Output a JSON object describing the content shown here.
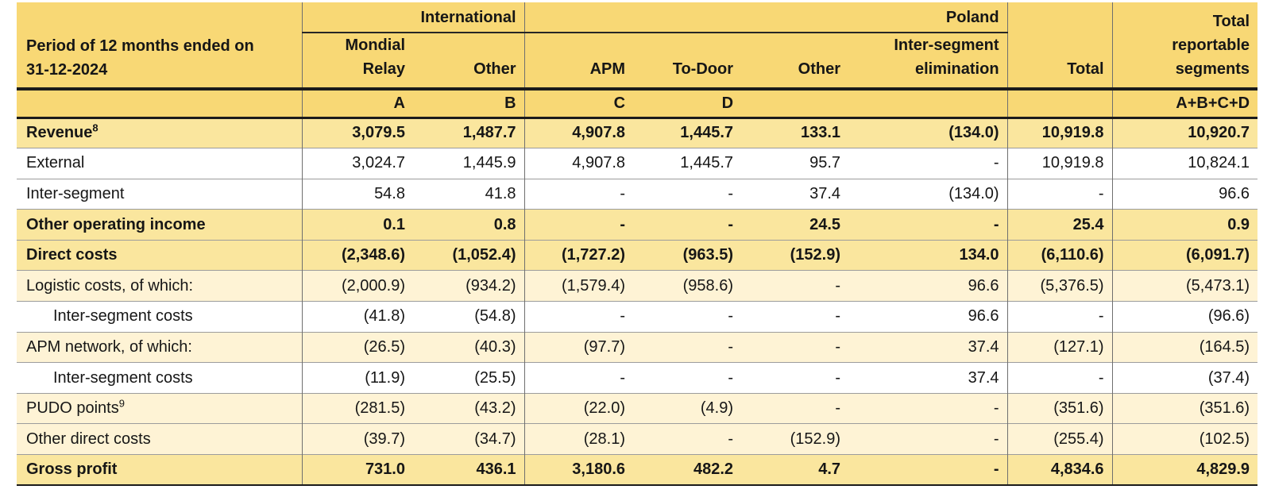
{
  "table": {
    "period_label": "Period of 12 months ended on\n31-12-2024",
    "groups": [
      {
        "label": "International"
      },
      {
        "label": "Poland"
      }
    ],
    "columns": [
      "Mondial\nRelay",
      "Other",
      "APM",
      "To-Door",
      "Other",
      "Inter-segment\nelimination",
      "Total",
      "Total\nreportable\nsegments"
    ],
    "letters": [
      "A",
      "B",
      "C",
      "D",
      "",
      "",
      "",
      "A+B+C+D"
    ],
    "rows": [
      {
        "label": "Revenue",
        "sup": "8",
        "indent": false,
        "style": "highlight",
        "values": [
          "3,079.5",
          "1,487.7",
          "4,907.8",
          "1,445.7",
          "133.1",
          "(134.0)",
          "10,919.8",
          "10,920.7"
        ]
      },
      {
        "label": "External",
        "sup": "",
        "indent": false,
        "style": "white",
        "values": [
          "3,024.7",
          "1,445.9",
          "4,907.8",
          "1,445.7",
          "95.7",
          "-",
          "10,919.8",
          "10,824.1"
        ]
      },
      {
        "label": "Inter-segment",
        "sup": "",
        "indent": false,
        "style": "white",
        "values": [
          "54.8",
          "41.8",
          "-",
          "-",
          "37.4",
          "(134.0)",
          "-",
          "96.6"
        ]
      },
      {
        "label": "Other operating income",
        "sup": "",
        "indent": false,
        "style": "highlight",
        "values": [
          "0.1",
          "0.8",
          "-",
          "-",
          "24.5",
          "-",
          "25.4",
          "0.9"
        ]
      },
      {
        "label": "Direct costs",
        "sup": "",
        "indent": false,
        "style": "highlight",
        "values": [
          "(2,348.6)",
          "(1,052.4)",
          "(1,727.2)",
          "(963.5)",
          "(152.9)",
          "134.0",
          "(6,110.6)",
          "(6,091.7)"
        ]
      },
      {
        "label": "Logistic costs, of which:",
        "sup": "",
        "indent": false,
        "style": "cream",
        "values": [
          "(2,000.9)",
          "(934.2)",
          "(1,579.4)",
          "(958.6)",
          "-",
          "96.6",
          "(5,376.5)",
          "(5,473.1)"
        ]
      },
      {
        "label": "Inter-segment costs",
        "sup": "",
        "indent": true,
        "style": "white",
        "values": [
          "(41.8)",
          "(54.8)",
          "-",
          "-",
          "-",
          "96.6",
          "-",
          "(96.6)"
        ]
      },
      {
        "label": "APM network, of which:",
        "sup": "",
        "indent": false,
        "style": "cream",
        "values": [
          "(26.5)",
          "(40.3)",
          "(97.7)",
          "-",
          "-",
          "37.4",
          "(127.1)",
          "(164.5)"
        ]
      },
      {
        "label": "Inter-segment costs",
        "sup": "",
        "indent": true,
        "style": "white",
        "values": [
          "(11.9)",
          "(25.5)",
          "-",
          "-",
          "-",
          "37.4",
          "-",
          "(37.4)"
        ]
      },
      {
        "label": "PUDO points",
        "sup": "9",
        "indent": false,
        "style": "cream",
        "values": [
          "(281.5)",
          "(43.2)",
          "(22.0)",
          "(4.9)",
          "-",
          "-",
          "(351.6)",
          "(351.6)"
        ]
      },
      {
        "label": "Other direct costs",
        "sup": "",
        "indent": false,
        "style": "cream",
        "values": [
          "(39.7)",
          "(34.7)",
          "(28.1)",
          "-",
          "(152.9)",
          "-",
          "(255.4)",
          "(102.5)"
        ]
      },
      {
        "label": "Gross profit",
        "sup": "",
        "indent": false,
        "style": "highlight",
        "values": [
          "731.0",
          "436.1",
          "3,180.6",
          "482.2",
          "4.7",
          "-",
          "4,834.6",
          "4,829.9"
        ]
      }
    ],
    "colors": {
      "header_gold": "#F8D875",
      "highlight_row": "#FAE69E",
      "cream_row": "#FEF3D5",
      "white_row": "#FFFFFF",
      "grid_thin": "#9C9C9C",
      "grid_vertical": "#6F6F6F",
      "grid_thick": "#1B1B1B",
      "text": "#161616"
    }
  }
}
